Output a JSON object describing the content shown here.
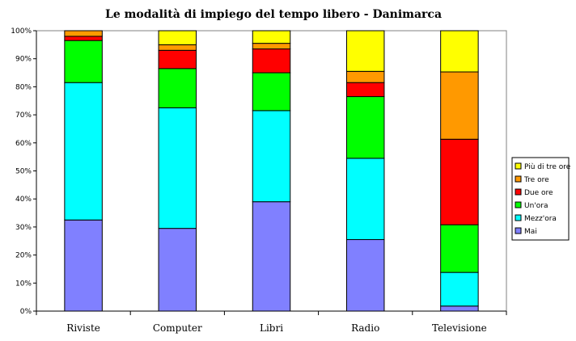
{
  "chart_data": {
    "type": "bar",
    "stacked": true,
    "title": "Le modalità di impiego del tempo libero - Danimarca",
    "xlabel": "",
    "ylabel": "",
    "ylim": [
      0,
      100
    ],
    "yticks": [
      "0%",
      "10%",
      "20%",
      "30%",
      "40%",
      "50%",
      "60%",
      "70%",
      "80%",
      "90%",
      "100%"
    ],
    "categories": [
      "Riviste",
      "Computer",
      "Libri",
      "Radio",
      "Televisione"
    ],
    "legend_position": "right",
    "grid": false,
    "series": [
      {
        "name": "Mai",
        "color": "#8080ff",
        "values": [
          32.5,
          29.5,
          39,
          25.5,
          1.8
        ]
      },
      {
        "name": "Mezz'ora",
        "color": "#00ffff",
        "values": [
          49,
          43,
          32.5,
          29,
          12
        ]
      },
      {
        "name": "Un'ora",
        "color": "#00ff00",
        "values": [
          15,
          14,
          13.5,
          22,
          17
        ]
      },
      {
        "name": "Due ore",
        "color": "#ff0000",
        "values": [
          1.5,
          6.5,
          8.5,
          5,
          30.5
        ]
      },
      {
        "name": "Tre ore",
        "color": "#ff9900",
        "values": [
          2,
          2,
          2,
          4,
          24
        ]
      },
      {
        "name": "Più di tre ore",
        "color": "#ffff00",
        "values": [
          0,
          5,
          4.5,
          14.5,
          14.7
        ]
      }
    ]
  }
}
